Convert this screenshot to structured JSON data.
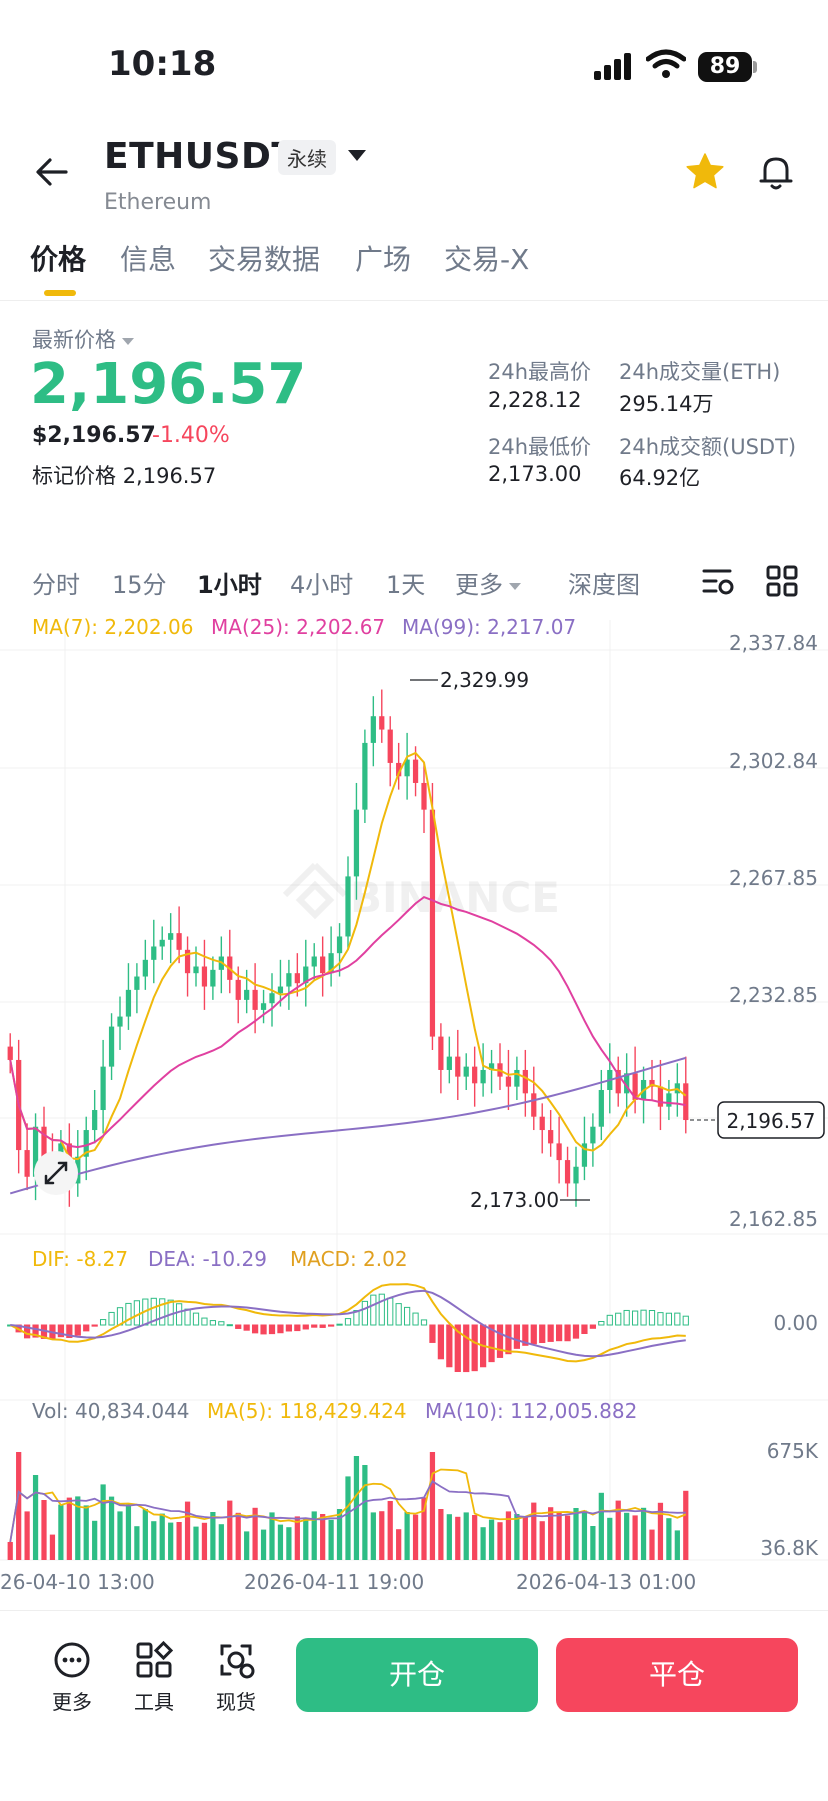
{
  "status_bar": {
    "time": "10:18",
    "battery": "89"
  },
  "header": {
    "symbol": "ETHUSDT",
    "contract_type": "永续",
    "name": "Ethereum"
  },
  "tabs": [
    {
      "label": "价格",
      "active": true
    },
    {
      "label": "信息"
    },
    {
      "label": "交易数据"
    },
    {
      "label": "广场"
    },
    {
      "label": "交易-X"
    }
  ],
  "price": {
    "label": "最新价格",
    "last": "2,196.57",
    "usd": "$2,196.57",
    "change_pct": "-1.40%",
    "mark_label": "标记价格",
    "mark_value": "2,196.57",
    "up_color": "#2ebd85",
    "down_color": "#f6465d"
  },
  "stats": {
    "high_label": "24h最高价",
    "high": "2,228.12",
    "low_label": "24h最低价",
    "low": "2,173.00",
    "vol_eth_label": "24h成交量(ETH)",
    "vol_eth": "295.14万",
    "vol_usdt_label": "24h成交额(USDT)",
    "vol_usdt": "64.92亿"
  },
  "intervals": [
    "分时",
    "15分",
    "1小时",
    "4小时",
    "1天",
    "更多",
    "深度图"
  ],
  "active_interval": "1小时",
  "icons": [
    "back-arrow-icon",
    "star-icon",
    "bell-icon",
    "chart-settings-icon",
    "grid-layout-icon",
    "expand-icon",
    "more-icon",
    "tools-icon",
    "spot-icon"
  ],
  "chart_data": {
    "type": "candlestick",
    "watermark": "BINANCE",
    "ma_legend": {
      "ma7": "MA(7): 2,202.06",
      "ma25": "MA(25): 2,202.67",
      "ma99": "MA(99): 2,217.07"
    },
    "ma_colors": {
      "ma7": "#f0b90b",
      "ma25": "#e040a0",
      "ma99": "#8a6fc4"
    },
    "y_ticks": [
      "2,337.84",
      "2,302.84",
      "2,267.85",
      "2,232.85",
      "2,162.85"
    ],
    "ylim": [
      2162.85,
      2337.84
    ],
    "high_marker": "2,329.99",
    "low_marker": "2,173.00",
    "current_price_tag": "2,196.57",
    "macd_legend": {
      "dif": "DIF: -8.27",
      "dea": "DEA: -10.29",
      "macd": "MACD: 2.02"
    },
    "macd_zero": "0.00",
    "vol_legend": {
      "vol": "Vol: 40,834.044",
      "ma5": "MA(5): 118,429.424",
      "ma10": "MA(10): 112,005.882"
    },
    "vol_ticks": [
      "675K",
      "36.8K"
    ],
    "x_ticks": [
      "26-04-10 13:00",
      "2026-04-11 19:00",
      "2026-04-13 01:00"
    ],
    "candles_close": [
      2215,
      2188,
      2180,
      2195,
      2185,
      2183,
      2190,
      2178,
      2186,
      2194,
      2200,
      2213,
      2225,
      2228,
      2236,
      2240,
      2245,
      2249,
      2251,
      2253,
      2248,
      2241,
      2243,
      2237,
      2242,
      2246,
      2239,
      2233,
      2236,
      2230,
      2232,
      2235,
      2237,
      2241,
      2238,
      2243,
      2246,
      2241,
      2247,
      2252,
      2270,
      2290,
      2310,
      2318,
      2314,
      2304,
      2300,
      2305,
      2298,
      2290,
      2222,
      2212,
      2216,
      2210,
      2213,
      2208,
      2212,
      2214,
      2210,
      2207,
      2212,
      2205,
      2198,
      2194,
      2190,
      2185,
      2178,
      2183,
      2190,
      2195,
      2206,
      2212,
      2205,
      2211,
      2203,
      2209,
      2207,
      2201,
      2205,
      2208,
      2197
    ]
  },
  "bottom_bar": {
    "more": "更多",
    "tools": "工具",
    "spot": "现货",
    "open_label": "开仓",
    "close_label": "平仓"
  }
}
